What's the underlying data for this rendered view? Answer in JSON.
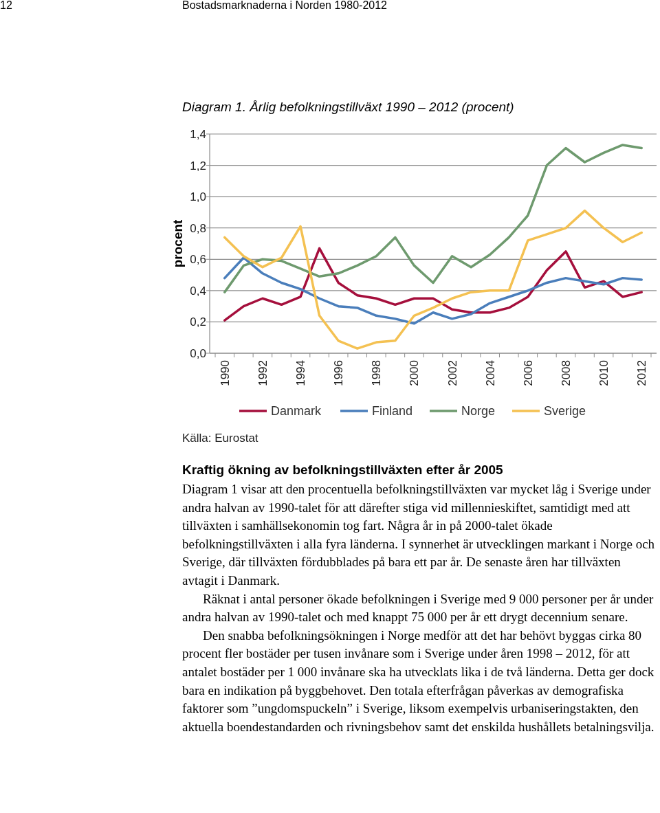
{
  "chart_data": {
    "type": "line",
    "title": "Diagram 1. Årlig befolkningstillväxt 1990 – 2012 (procent)",
    "ylabel": "procent",
    "categories": [
      "1990",
      null,
      "1992",
      null,
      "1994",
      null,
      "1996",
      null,
      "1998",
      null,
      "2000",
      null,
      "2002",
      null,
      "2004",
      null,
      "2006",
      null,
      "2008",
      null,
      "2010",
      null,
      "2012"
    ],
    "series": [
      {
        "name": "Danmark",
        "color": "#a50f3c",
        "values": [
          0.21,
          0.3,
          0.35,
          0.31,
          0.36,
          0.67,
          0.45,
          0.37,
          0.35,
          0.31,
          0.35,
          0.35,
          0.28,
          0.26,
          0.26,
          0.29,
          0.36,
          0.53,
          0.65,
          0.42,
          0.46,
          0.36,
          0.39
        ]
      },
      {
        "name": "Finland",
        "color": "#4a7ebb",
        "values": [
          0.48,
          0.61,
          0.51,
          0.45,
          0.41,
          0.35,
          0.3,
          0.29,
          0.24,
          0.22,
          0.19,
          0.26,
          0.22,
          0.25,
          0.32,
          0.36,
          0.4,
          0.45,
          0.48,
          0.46,
          0.44,
          0.48,
          0.47
        ]
      },
      {
        "name": "Norge",
        "color": "#6e9a6e",
        "values": [
          0.39,
          0.56,
          0.6,
          0.59,
          0.54,
          0.49,
          0.51,
          0.56,
          0.62,
          0.74,
          0.56,
          0.45,
          0.62,
          0.55,
          0.63,
          0.74,
          0.88,
          1.2,
          1.31,
          1.22,
          1.28,
          1.33,
          1.31
        ]
      },
      {
        "name": "Sverige",
        "color": "#f4c152",
        "values": [
          0.74,
          0.62,
          0.55,
          0.61,
          0.81,
          0.24,
          0.08,
          0.03,
          0.07,
          0.08,
          0.24,
          0.29,
          0.35,
          0.39,
          0.4,
          0.4,
          0.72,
          0.76,
          0.8,
          0.91,
          0.8,
          0.71,
          0.77
        ]
      }
    ],
    "ylim": [
      0,
      1.4
    ],
    "yticks": [
      {
        "value": 0,
        "label": "0,0"
      },
      {
        "value": 0.2,
        "label": "0,2"
      },
      {
        "value": 0.4,
        "label": "0,4"
      },
      {
        "value": 0.6,
        "label": "0,6"
      },
      {
        "value": 0.8,
        "label": "0,8"
      },
      {
        "value": 1.0,
        "label": "1,0"
      },
      {
        "value": 1.2,
        "label": "1,2"
      },
      {
        "value": 1.4,
        "label": "1,4"
      }
    ],
    "grid": "y",
    "legend": "bottom",
    "marker": "none",
    "line_style": "solid",
    "annotations": [
      "12",
      "Bostadsmarknaderna i Norden 1980-2012",
      "Källa: Eurostat",
      "Kraftig ökning av befolkningstillväxten efter år 2005",
      "Diagram 1 visar att den procentuella befolkningstillväxten var mycket låg i Sverige under andra halvan av 1990-talet för att därefter stiga vid millennieskiftet, samtidigt med att tillväxten i samhällsekonomin tog fart. Några år in på 2000-talet ökade befolkningstillväxten i alla fyra länderna. I synnerhet är utvecklingen markant i Norge och Sverige, där tillväxten fördubblades på bara ett par år. De senaste åren har tillväxten avtagit i Danmark.",
      "Räknat i antal personer ökade befolkningen i Sverige med 9 000 personer per år under andra halvan av 1990-talet och med knappt 75 000 per år ett drygt decennium senare.",
      "Den snabba befolkningsökningen i Norge medför att det har behövt byggas cirka 80 procent fler bostäder per tusen invånare som i Sverige under åren 1998 – 2012, för att antalet bostäder per 1 000 invånare ska ha utvecklats lika i de två länderna. Detta ger dock bara en indikation på byggbehovet. Den totala efterfrågan påverkas av demografiska faktorer som ”ungdomspuckeln” i Sverige, liksom exempelvis urbaniseringstakten, den aktuella boendestandarden och rivningsbehov samt det enskilda hushållets betalningsvilja."
    ]
  }
}
